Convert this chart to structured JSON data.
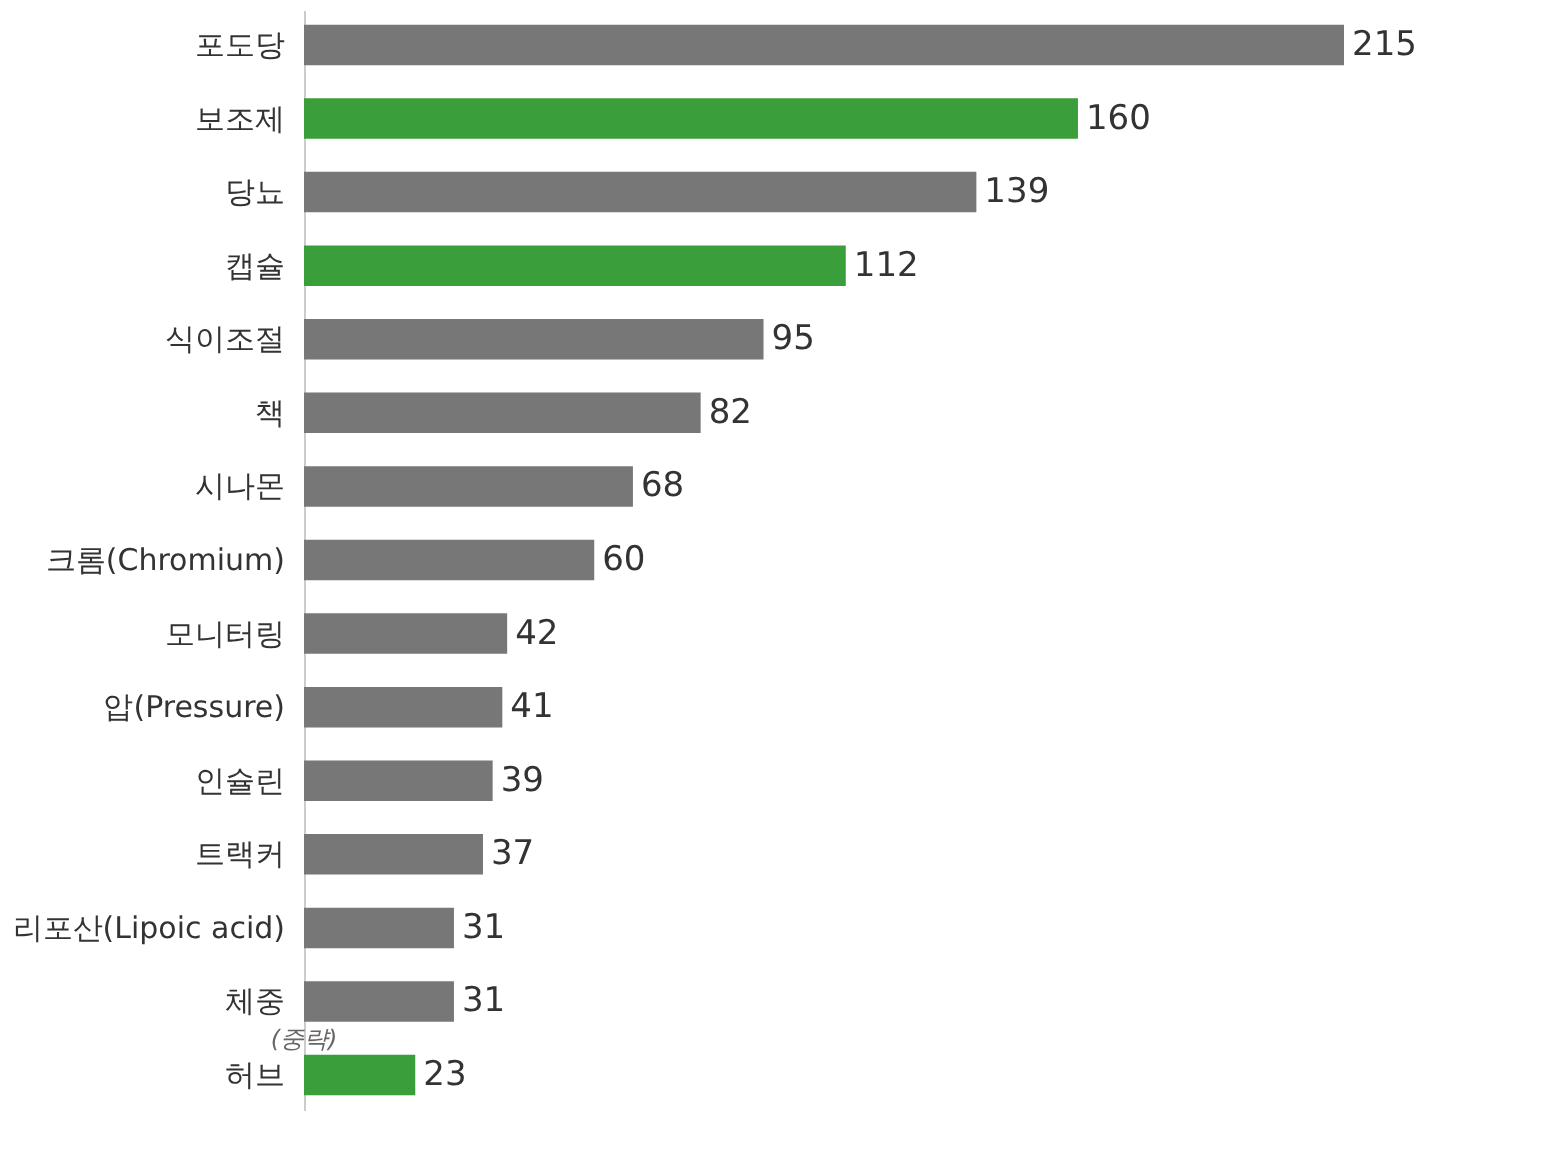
{
  "chart_data": {
    "type": "bar",
    "orientation": "horizontal",
    "data_labels": true,
    "categories": [
      "포도당",
      "보조제",
      "당뇨",
      "캡슐",
      "식이조절",
      "책",
      "시나몬",
      "크롬(Chromium)",
      "모니터링",
      "압(Pressure)",
      "인슐린",
      "트랙커",
      "리포산(Lipoic acid)",
      "체중",
      "허브"
    ],
    "values": [
      215,
      160,
      139,
      112,
      95,
      82,
      68,
      60,
      42,
      41,
      39,
      37,
      31,
      31,
      23
    ],
    "colors": [
      "#777777",
      "#3a9e3a",
      "#777777",
      "#3a9e3a",
      "#777777",
      "#777777",
      "#777777",
      "#777777",
      "#777777",
      "#777777",
      "#777777",
      "#777777",
      "#777777",
      "#777777",
      "#3a9e3a"
    ],
    "annotations": [
      "(중략)"
    ]
  }
}
